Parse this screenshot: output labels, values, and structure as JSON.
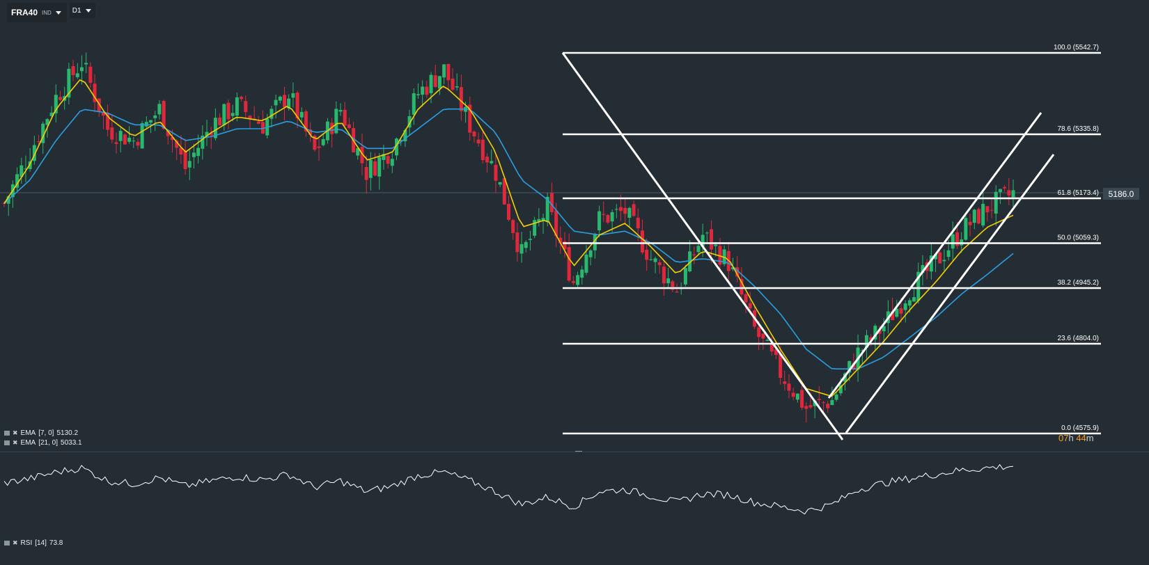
{
  "toolbar": {
    "symbol": "FRA40",
    "symbol_type": "IND",
    "timeframe": "D1",
    "dropdown_icon": "caret-down-icon"
  },
  "colors": {
    "background": "#252d34",
    "bull_candle": "#28b86e",
    "bear_candle": "#e0283c",
    "ema_fast": "#f5d000",
    "ema_slow": "#2a9fe0",
    "drawings": "#ffffff",
    "countdown": "#f0a020"
  },
  "indicators": {
    "ema_fast": {
      "label": "EMA",
      "params": "[7, 0]",
      "value": "5130.2"
    },
    "ema_slow": {
      "label": "EMA",
      "params": "[21, 0]",
      "value": "5033.1"
    },
    "rsi": {
      "label": "RSI",
      "params": "[14]",
      "value": "73.8"
    }
  },
  "price_tag": "5186.0",
  "countdown": {
    "hours": "07",
    "hours_unit": "h",
    "minutes": "44",
    "minutes_unit": "m"
  },
  "chart_data": {
    "type": "candlestick",
    "symbol": "FRA40",
    "timeframe": "D1",
    "ylim": [
      4560,
      5600
    ],
    "last_price": 5186.0,
    "fibonacci": [
      {
        "level": "100.0",
        "price": 5542.7,
        "label": "100.0 (5542.7)"
      },
      {
        "level": "78.6",
        "price": 5335.8,
        "label": "78.6 (5335.8)"
      },
      {
        "level": "61.8",
        "price": 5173.4,
        "label": "61.8 (5173.4)"
      },
      {
        "level": "50.0",
        "price": 5059.3,
        "label": "50.0 (5059.3)"
      },
      {
        "level": "38.2",
        "price": 4945.2,
        "label": "38.2 (4945.2)"
      },
      {
        "level": "23.6",
        "price": 4804.0,
        "label": "23.6 (4804.0)"
      },
      {
        "level": "0.0",
        "price": 4575.9,
        "label": "0.0 (4575.9)"
      }
    ],
    "close_trend": [
      5160,
      5290,
      5430,
      5520,
      5350,
      5320,
      5400,
      5250,
      5360,
      5410,
      5360,
      5440,
      5290,
      5400,
      5240,
      5300,
      5440,
      5500,
      5360,
      5240,
      5030,
      5150,
      4960,
      5120,
      5140,
      5020,
      4940,
      5080,
      5010,
      4840,
      4730,
      4640,
      4660,
      4780,
      4850,
      4940,
      5010,
      5090,
      5150,
      5186
    ],
    "ema7_trend": [
      5160,
      5260,
      5400,
      5480,
      5380,
      5330,
      5370,
      5290,
      5340,
      5380,
      5370,
      5410,
      5320,
      5370,
      5270,
      5290,
      5400,
      5460,
      5400,
      5290,
      5100,
      5120,
      5000,
      5080,
      5110,
      5050,
      4980,
      5040,
      5020,
      4900,
      4790,
      4690,
      4670,
      4740,
      4810,
      4890,
      4960,
      5040,
      5100,
      5130.2
    ],
    "ema21_trend": [
      5160,
      5220,
      5320,
      5400,
      5390,
      5360,
      5360,
      5320,
      5330,
      5350,
      5350,
      5370,
      5340,
      5350,
      5300,
      5300,
      5350,
      5400,
      5400,
      5340,
      5220,
      5170,
      5090,
      5080,
      5090,
      5060,
      5010,
      5020,
      5010,
      4950,
      4880,
      4790,
      4740,
      4740,
      4770,
      4820,
      4870,
      4930,
      4980,
      5033.1
    ],
    "rsi_trend": [
      58,
      62,
      68,
      72,
      60,
      57,
      63,
      55,
      60,
      64,
      61,
      66,
      54,
      60,
      50,
      55,
      65,
      68,
      60,
      50,
      38,
      45,
      36,
      50,
      52,
      46,
      40,
      48,
      47,
      40,
      36,
      32,
      38,
      52,
      58,
      62,
      66,
      70,
      72,
      73.8
    ]
  }
}
